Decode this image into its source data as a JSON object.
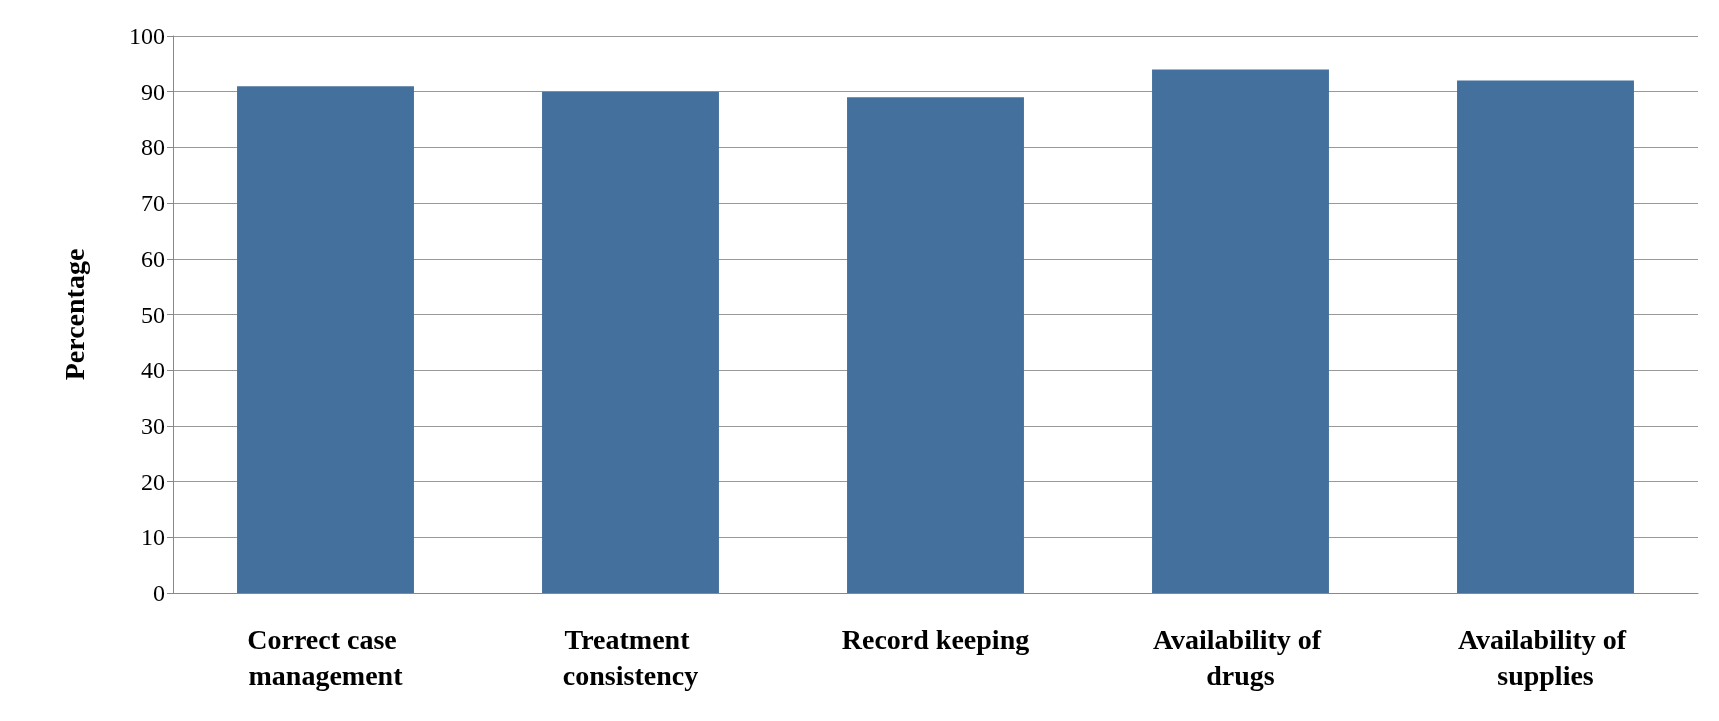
{
  "chart_data": {
    "type": "bar",
    "ylabel": "Percentage",
    "categories": [
      "Correct case management",
      "Treatment consistency",
      "Record keeping",
      "Availability of drugs",
      "Availability of supplies"
    ],
    "values": [
      91,
      90,
      89,
      94,
      92
    ],
    "color": "#44709d",
    "ylim": [
      0,
      100
    ],
    "yticks": [
      0,
      10,
      20,
      30,
      40,
      50,
      60,
      70,
      80,
      90,
      100
    ],
    "grid": "y"
  }
}
